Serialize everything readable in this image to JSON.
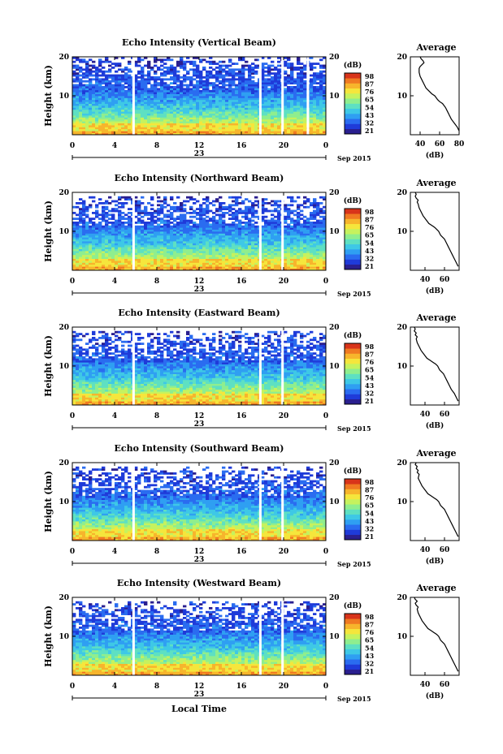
{
  "chart_data": [
    {
      "type": "heatmap",
      "title": "Echo Intensity (Vertical Beam)",
      "ylabel": "Height (km)",
      "xticks": [
        "0",
        "4",
        "8",
        "12",
        "16",
        "20",
        "0"
      ],
      "yticks": [
        "20",
        "10"
      ],
      "xlim": [
        0,
        24
      ],
      "ylim": [
        0,
        20
      ],
      "date_label": "23",
      "month_label": "Sep 2015",
      "colorbar": {
        "unit": "(dB)",
        "ticks": [
          "98",
          "87",
          "76",
          "65",
          "54",
          "43",
          "32",
          "21"
        ]
      },
      "profile": {
        "title": "Average",
        "xlabel": "(dB)",
        "xticks": [
          "40",
          "60",
          "80"
        ],
        "yticks": [
          "20",
          "10"
        ],
        "xlim": [
          30,
          80
        ],
        "ylim": [
          0,
          20
        ],
        "x": [
          80,
          78,
          75,
          72,
          70,
          68,
          66,
          63,
          60,
          58,
          55,
          52,
          50,
          48,
          46,
          44,
          42,
          40,
          39,
          39,
          40,
          42,
          44,
          43,
          41,
          40
        ],
        "y": [
          1,
          2,
          3,
          4,
          5,
          6,
          7,
          8,
          8.5,
          9,
          10,
          10.5,
          11,
          11.5,
          12,
          13,
          14,
          15,
          16,
          17,
          17.5,
          18,
          18.5,
          19,
          19.5,
          20
        ]
      },
      "gaps": [
        5.8,
        17.8,
        19.9,
        22.3
      ]
    },
    {
      "type": "heatmap",
      "title": "Echo Intensity (Northward Beam)",
      "ylabel": "Height (km)",
      "xticks": [
        "0",
        "4",
        "8",
        "12",
        "16",
        "20",
        "0"
      ],
      "yticks": [
        "20",
        "10"
      ],
      "xlim": [
        0,
        24
      ],
      "ylim": [
        0,
        20
      ],
      "date_label": "23",
      "month_label": "Sep 2015",
      "colorbar": {
        "unit": "(dB)",
        "ticks": [
          "98",
          "87",
          "76",
          "65",
          "54",
          "43",
          "32",
          "21"
        ]
      },
      "profile": {
        "title": "Average",
        "xlabel": "(dB)",
        "xticks": [
          "40",
          "60"
        ],
        "yticks": [
          "20",
          "10"
        ],
        "xlim": [
          25,
          75
        ],
        "ylim": [
          0,
          20
        ],
        "x": [
          74,
          72,
          70,
          68,
          66,
          64,
          62,
          60,
          58,
          56,
          54,
          52,
          50,
          47,
          44,
          41,
          38,
          36,
          34,
          33,
          32,
          33,
          31,
          30,
          31,
          30
        ],
        "y": [
          1,
          2,
          3,
          4,
          5,
          6,
          7,
          8,
          8.5,
          9,
          10,
          10.5,
          11,
          11.5,
          12,
          13,
          14,
          15,
          16,
          17,
          17.5,
          18,
          18.5,
          19,
          19.5,
          20
        ]
      },
      "gaps": [
        5.8,
        17.8,
        19.9
      ]
    },
    {
      "type": "heatmap",
      "title": "Echo Intensity (Eastward Beam)",
      "ylabel": "Height (km)",
      "xticks": [
        "0",
        "4",
        "8",
        "12",
        "16",
        "20",
        "0"
      ],
      "yticks": [
        "20",
        "10"
      ],
      "xlim": [
        0,
        24
      ],
      "ylim": [
        0,
        20
      ],
      "date_label": "23",
      "month_label": "Sep 2015",
      "colorbar": {
        "unit": "(dB)",
        "ticks": [
          "98",
          "87",
          "76",
          "65",
          "54",
          "43",
          "32",
          "21"
        ]
      },
      "profile": {
        "title": "Average",
        "xlabel": "(dB)",
        "xticks": [
          "40",
          "60"
        ],
        "yticks": [
          "20",
          "10"
        ],
        "xlim": [
          25,
          75
        ],
        "ylim": [
          0,
          20
        ],
        "x": [
          74,
          72,
          70,
          67,
          65,
          63,
          61,
          59,
          57,
          55,
          53,
          51,
          48,
          45,
          42,
          39,
          36,
          34,
          32,
          31,
          32,
          30,
          31,
          29,
          30,
          29
        ],
        "y": [
          1,
          2,
          3,
          4,
          5,
          6,
          7,
          8,
          8.5,
          9,
          10,
          10.5,
          11,
          11.5,
          12,
          13,
          14,
          15,
          16,
          17,
          17.5,
          18,
          18.5,
          19,
          19.5,
          20
        ]
      },
      "gaps": [
        5.8,
        17.8,
        19.9
      ]
    },
    {
      "type": "heatmap",
      "title": "Echo Intensity (Southward Beam)",
      "ylabel": "Height (km)",
      "xticks": [
        "0",
        "4",
        "8",
        "12",
        "16",
        "20",
        "0"
      ],
      "yticks": [
        "20",
        "10"
      ],
      "xlim": [
        0,
        24
      ],
      "ylim": [
        0,
        20
      ],
      "date_label": "23",
      "month_label": "Sep 2015",
      "colorbar": {
        "unit": "(dB)",
        "ticks": [
          "98",
          "87",
          "76",
          "65",
          "54",
          "43",
          "32",
          "21"
        ]
      },
      "profile": {
        "title": "Average",
        "xlabel": "(dB)",
        "xticks": [
          "40",
          "60"
        ],
        "yticks": [
          "20",
          "10"
        ],
        "xlim": [
          25,
          75
        ],
        "ylim": [
          0,
          20
        ],
        "x": [
          74,
          72,
          70,
          68,
          66,
          64,
          62,
          60,
          58,
          56,
          54,
          52,
          49,
          46,
          43,
          40,
          37,
          35,
          33,
          34,
          32,
          33,
          31,
          32,
          30,
          31
        ],
        "y": [
          1,
          2,
          3,
          4,
          5,
          6,
          7,
          8,
          8.5,
          9,
          10,
          10.5,
          11,
          11.5,
          12,
          13,
          14,
          15,
          16,
          17,
          17.5,
          18,
          18.5,
          19,
          19.5,
          20
        ]
      },
      "gaps": [
        5.8,
        17.8,
        19.9
      ]
    },
    {
      "type": "heatmap",
      "title": "Echo Intensity (Westward Beam)",
      "ylabel": "Height (km)",
      "xticks": [
        "0",
        "4",
        "8",
        "12",
        "16",
        "20",
        "0"
      ],
      "yticks": [
        "20",
        "10"
      ],
      "xlim": [
        0,
        24
      ],
      "ylim": [
        0,
        20
      ],
      "date_label": "23",
      "month_label": "Sep 2015",
      "xlabel": "Local Time",
      "colorbar": {
        "unit": "(dB)",
        "ticks": [
          "98",
          "87",
          "76",
          "65",
          "54",
          "43",
          "32",
          "21"
        ]
      },
      "profile": {
        "title": "Average",
        "xlabel": "(dB)",
        "xticks": [
          "40",
          "60"
        ],
        "yticks": [
          "20",
          "10"
        ],
        "xlim": [
          25,
          75
        ],
        "ylim": [
          0,
          20
        ],
        "x": [
          74,
          72,
          70,
          68,
          66,
          64,
          62,
          60,
          58,
          56,
          54,
          52,
          49,
          46,
          43,
          40,
          37,
          35,
          33,
          32,
          33,
          31,
          30,
          32,
          30,
          29
        ],
        "y": [
          1,
          2,
          3,
          4,
          5,
          6,
          7,
          8,
          8.5,
          9,
          10,
          10.5,
          11,
          11.5,
          12,
          13,
          14,
          15,
          16,
          17,
          17.5,
          18,
          18.5,
          19,
          19.5,
          20
        ]
      },
      "gaps": [
        5.8,
        17.8,
        19.9
      ]
    }
  ]
}
